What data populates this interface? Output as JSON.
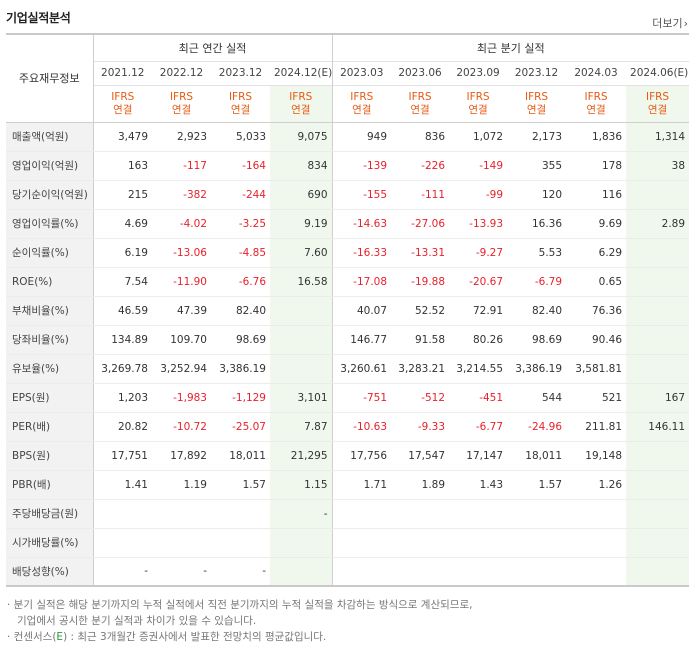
{
  "title": "기업실적분석",
  "more_label": "더보기",
  "more_icon": "chevron-right-icon",
  "header": {
    "row_label": "주요재무정보",
    "annual_group": "최근 연간 실적",
    "quarter_group": "최근 분기 실적",
    "periods": [
      "2021.12",
      "2022.12",
      "2023.12",
      "2024.12(E)",
      "2023.03",
      "2023.06",
      "2023.09",
      "2023.12",
      "2024.03",
      "2024.06(E)"
    ],
    "standard_top": "IFRS",
    "standard_bottom": "연결"
  },
  "rows": [
    {
      "label": "매출액(억원)",
      "values": [
        "3,479",
        "2,923",
        "5,033",
        "9,075",
        "949",
        "836",
        "1,072",
        "2,173",
        "1,836",
        "1,314"
      ]
    },
    {
      "label": "영업이익(억원)",
      "values": [
        "163",
        "-117",
        "-164",
        "834",
        "-139",
        "-226",
        "-149",
        "355",
        "178",
        "38"
      ]
    },
    {
      "label": "당기순이익(억원)",
      "values": [
        "215",
        "-382",
        "-244",
        "690",
        "-155",
        "-111",
        "-99",
        "120",
        "116",
        ""
      ]
    },
    {
      "label": "영업이익률(%)",
      "values": [
        "4.69",
        "-4.02",
        "-3.25",
        "9.19",
        "-14.63",
        "-27.06",
        "-13.93",
        "16.36",
        "9.69",
        "2.89"
      ]
    },
    {
      "label": "순이익률(%)",
      "values": [
        "6.19",
        "-13.06",
        "-4.85",
        "7.60",
        "-16.33",
        "-13.31",
        "-9.27",
        "5.53",
        "6.29",
        ""
      ]
    },
    {
      "label": "ROE(%)",
      "values": [
        "7.54",
        "-11.90",
        "-6.76",
        "16.58",
        "-17.08",
        "-19.88",
        "-20.67",
        "-6.79",
        "0.65",
        ""
      ]
    },
    {
      "label": "부채비율(%)",
      "values": [
        "46.59",
        "47.39",
        "82.40",
        "",
        "40.07",
        "52.52",
        "72.91",
        "82.40",
        "76.36",
        ""
      ]
    },
    {
      "label": "당좌비율(%)",
      "values": [
        "134.89",
        "109.70",
        "98.69",
        "",
        "146.77",
        "91.58",
        "80.26",
        "98.69",
        "90.46",
        ""
      ]
    },
    {
      "label": "유보율(%)",
      "values": [
        "3,269.78",
        "3,252.94",
        "3,386.19",
        "",
        "3,260.61",
        "3,283.21",
        "3,214.55",
        "3,386.19",
        "3,581.81",
        ""
      ]
    },
    {
      "label": "EPS(원)",
      "values": [
        "1,203",
        "-1,983",
        "-1,129",
        "3,101",
        "-751",
        "-512",
        "-451",
        "544",
        "521",
        "167"
      ]
    },
    {
      "label": "PER(배)",
      "values": [
        "20.82",
        "-10.72",
        "-25.07",
        "7.87",
        "-10.63",
        "-9.33",
        "-6.77",
        "-24.96",
        "211.81",
        "146.11"
      ]
    },
    {
      "label": "BPS(원)",
      "values": [
        "17,751",
        "17,892",
        "18,011",
        "21,295",
        "17,756",
        "17,547",
        "17,147",
        "18,011",
        "19,148",
        ""
      ]
    },
    {
      "label": "PBR(배)",
      "values": [
        "1.41",
        "1.19",
        "1.57",
        "1.15",
        "1.71",
        "1.89",
        "1.43",
        "1.57",
        "1.26",
        ""
      ]
    },
    {
      "label": "주당배당금(원)",
      "values": [
        "",
        "",
        "",
        "-",
        "",
        "",
        "",
        "",
        "",
        ""
      ]
    },
    {
      "label": "시가배당률(%)",
      "values": [
        "",
        "",
        "",
        "",
        "",
        "",
        "",
        "",
        "",
        ""
      ]
    },
    {
      "label": "배당성향(%)",
      "values": [
        "-",
        "-",
        "-",
        "",
        "",
        "",
        "",
        "",
        "",
        ""
      ]
    }
  ],
  "notes": {
    "line1": "· 분기 실적은 해당 분기까지의 누적 실적에서 직전 분기까지의 누적 실적을 차감하는 방식으로 계산되므로,",
    "line2": "기업에서 공시한 분기 실적과 차이가 있을 수 있습니다.",
    "line3_prefix": "· 컨센서스(",
    "line3_e": "E",
    "line3_suffix": ") : 최근 3개월간 증권사에서 발표한 전망치의 평균값입니다."
  },
  "colors": {
    "negative": "#e8212c",
    "ifrs": "#e55a12",
    "estimate_bg": "#f0f8ee",
    "consensus_e": "#2e9a3d"
  }
}
